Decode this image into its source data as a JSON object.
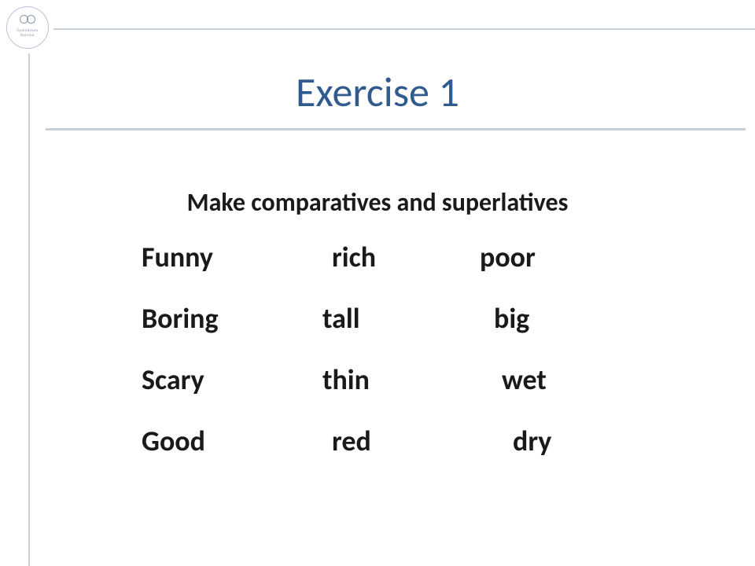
{
  "logo": {
    "line1": "Gymnázium",
    "line2": "Karvina"
  },
  "title": {
    "text": "Exercise 1",
    "color": "#2f5b8f",
    "fontsize": 52
  },
  "instruction": {
    "text": "Make comparatives and superlatives",
    "fontsize": 32,
    "fontweight": "bold"
  },
  "words": {
    "rows": [
      {
        "c1": "Funny",
        "c2": "rich",
        "c3": "poor",
        "c2_pad": 12,
        "c3_pad": 0
      },
      {
        "c1": "Boring",
        "c2": "tall",
        "c3": "big",
        "c2_pad": 0,
        "c3_pad": 18
      },
      {
        "c1": "Scary",
        "c2": "thin",
        "c3": "wet",
        "c2_pad": -12,
        "c3_pad": 28
      },
      {
        "c1": "Good",
        "c2": "red",
        "c3": "dry",
        "c2_pad": 12,
        "c3_pad": 42
      }
    ],
    "fontsize": 36,
    "fontweight": "bold",
    "text_color": "#1a1a1a"
  },
  "style": {
    "background": "#ffffff",
    "rule_color": "#c7cfda",
    "logo_border": "#b8c4d6"
  }
}
